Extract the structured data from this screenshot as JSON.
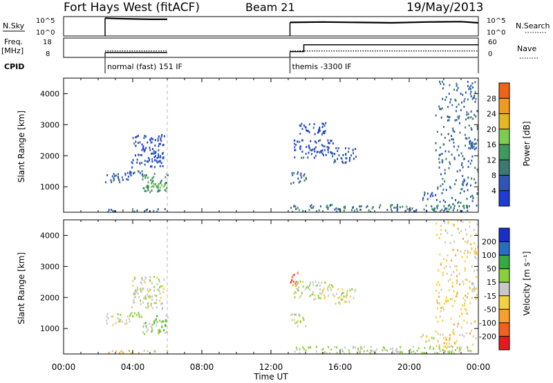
{
  "header": {
    "station": "Fort Hays West (fitACF)",
    "beam": "Beam 21",
    "date": "19/May/2013"
  },
  "strip_labels": {
    "nsky": "N.Sky",
    "freq_line1": "Freq.",
    "freq_line2": "[MHz]",
    "cpid": "CPID",
    "nsearch": "N.Search",
    "nave": "Nave",
    "nsky_top": "10^5",
    "nsky_bottom": "10^0",
    "nsearch_top": "10^5",
    "nsearch_bottom": "10^0",
    "freq_top": "18",
    "freq_bottom": "8",
    "nave_top": "60",
    "nave_bottom": "0"
  },
  "cpid_segments": [
    {
      "label": "normal (fast) 151 IF",
      "start_hour": 2.4
    },
    {
      "label": "themis -3300 IF",
      "start_hour": 13.1
    }
  ],
  "x_axis": {
    "label": "Time UT",
    "ticks": [
      "00:00",
      "04:00",
      "08:00",
      "12:00",
      "16:00",
      "20:00",
      "00:00"
    ]
  },
  "panels": {
    "power": {
      "ylabel": "Slant Range [km]",
      "yticks": [
        "1000",
        "2000",
        "3000",
        "4000"
      ],
      "colorbar_label": "Power [dB]",
      "colorbar_ticks": [
        "4",
        "8",
        "12",
        "16",
        "20",
        "24",
        "28"
      ]
    },
    "velocity": {
      "ylabel": "Slant Range [km]",
      "yticks": [
        "1000",
        "2000",
        "3000",
        "4000"
      ],
      "colorbar_label": "Velocity [m s⁻¹]",
      "colorbar_ticks": [
        "-200",
        "-100",
        "-50",
        "-15",
        "15",
        "50",
        "100",
        "200"
      ]
    }
  },
  "chart_data": [
    {
      "type": "line",
      "name": "N.Sky / N.Search",
      "x_range_hours": [
        0,
        24
      ],
      "segments": [
        {
          "x": [
            2.4,
            3.0,
            4.0,
            5.0,
            6.0
          ],
          "y_log10": [
            4.6,
            4.5,
            4.4,
            4.3,
            4.3
          ]
        },
        {
          "x": [
            13.1,
            15.0,
            17.0,
            19.0,
            21.0,
            23.0,
            24.0
          ],
          "y_log10": [
            3.5,
            3.6,
            3.5,
            3.4,
            3.6,
            3.7,
            3.4
          ]
        }
      ]
    },
    {
      "type": "line",
      "name": "Freq / Nave",
      "freq_mhz": [
        {
          "x": [
            2.4,
            6.0
          ],
          "y": [
            10.5,
            10.5
          ]
        },
        {
          "x": [
            13.1,
            13.9,
            13.9,
            24.0
          ],
          "y": [
            11.0,
            11.0,
            14.5,
            14.5
          ]
        }
      ],
      "nave": [
        {
          "x": [
            2.4,
            6.0
          ],
          "y": [
            20,
            20
          ]
        },
        {
          "x": [
            13.1,
            24.0
          ],
          "y": [
            20,
            20
          ]
        }
      ]
    },
    {
      "type": "heatmap",
      "title": "Power",
      "x_range_hours": [
        0,
        24
      ],
      "y_range_km": [
        180,
        4500
      ],
      "unit": "dB",
      "color_levels": [
        4,
        8,
        12,
        16,
        20,
        24,
        28
      ],
      "patches": [
        {
          "t": [
            2.4,
            3.8
          ],
          "r": [
            1150,
            1500
          ],
          "v": 6
        },
        {
          "t": [
            3.8,
            4.6
          ],
          "r": [
            1400,
            1550
          ],
          "v": 6
        },
        {
          "t": [
            4.5,
            6.0
          ],
          "r": [
            850,
            1450
          ],
          "v": 12
        },
        {
          "t": [
            4.6,
            5.9
          ],
          "r": [
            1000,
            1250
          ],
          "v": 16
        },
        {
          "t": [
            3.9,
            5.8
          ],
          "r": [
            1650,
            2700
          ],
          "v": 5
        },
        {
          "t": [
            2.4,
            6.0
          ],
          "r": [
            220,
            320
          ],
          "v": 8
        },
        {
          "t": [
            13.1,
            14.0
          ],
          "r": [
            1100,
            1500
          ],
          "v": 8
        },
        {
          "t": [
            13.3,
            15.6
          ],
          "r": [
            1950,
            2550
          ],
          "v": 5
        },
        {
          "t": [
            13.6,
            15.2
          ],
          "r": [
            2700,
            3100
          ],
          "v": 5
        },
        {
          "t": [
            15.6,
            16.9
          ],
          "r": [
            1800,
            2300
          ],
          "v": 5
        },
        {
          "t": [
            13.1,
            23.5
          ],
          "r": [
            220,
            450
          ],
          "v": 10
        },
        {
          "t": [
            20.6,
            21.5
          ],
          "r": [
            600,
            850
          ],
          "v": 6
        },
        {
          "t": [
            21.5,
            24.0
          ],
          "r": [
            300,
            4500
          ],
          "v": 8
        },
        {
          "t": [
            23.4,
            24.0
          ],
          "r": [
            2100,
            2500
          ],
          "v": 5
        }
      ]
    },
    {
      "type": "heatmap",
      "title": "Velocity",
      "x_range_hours": [
        0,
        24
      ],
      "y_range_km": [
        180,
        4500
      ],
      "unit": "m s⁻¹",
      "color_levels": [
        -200,
        -100,
        -50,
        -15,
        15,
        50,
        100,
        200
      ],
      "patches": [
        {
          "t": [
            2.4,
            3.8
          ],
          "r": [
            1150,
            1500
          ],
          "v": 0
        },
        {
          "t": [
            3.8,
            4.6
          ],
          "r": [
            1400,
            1550
          ],
          "v": 20
        },
        {
          "t": [
            4.5,
            6.0
          ],
          "r": [
            850,
            1450
          ],
          "v": 30
        },
        {
          "t": [
            3.9,
            5.8
          ],
          "r": [
            1650,
            2700
          ],
          "v": 0
        },
        {
          "t": [
            2.4,
            6.0
          ],
          "r": [
            220,
            320
          ],
          "v": -40
        },
        {
          "t": [
            13.1,
            14.0
          ],
          "r": [
            1100,
            1500
          ],
          "v": 0
        },
        {
          "t": [
            13.1,
            13.6
          ],
          "r": [
            2400,
            2900
          ],
          "v": -150
        },
        {
          "t": [
            13.3,
            15.6
          ],
          "r": [
            1950,
            2550
          ],
          "v": 0
        },
        {
          "t": [
            15.6,
            16.9
          ],
          "r": [
            1800,
            2300
          ],
          "v": 0
        },
        {
          "t": [
            13.1,
            23.5
          ],
          "r": [
            220,
            450
          ],
          "v": 20
        },
        {
          "t": [
            20.6,
            21.5
          ],
          "r": [
            600,
            850
          ],
          "v": 0
        },
        {
          "t": [
            21.5,
            24.0
          ],
          "r": [
            300,
            4500
          ],
          "v": -30
        },
        {
          "t": [
            23.4,
            24.0
          ],
          "r": [
            2100,
            2500
          ],
          "v": 0
        }
      ]
    }
  ]
}
